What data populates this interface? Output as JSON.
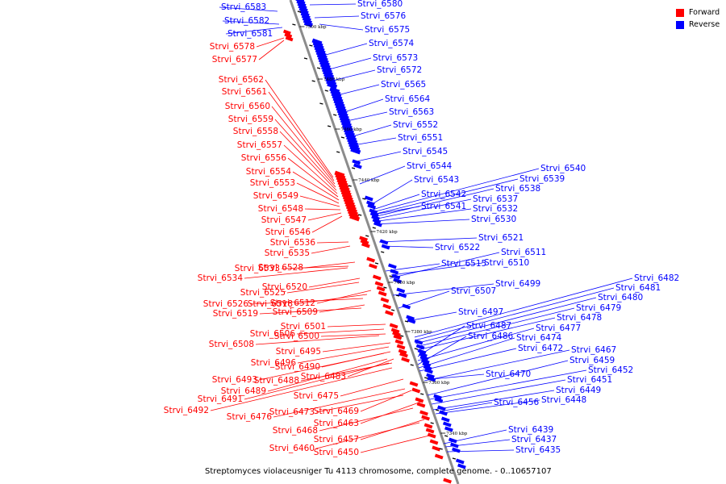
{
  "legend": {
    "forward": {
      "label": "Forward",
      "color": "#ff0000"
    },
    "reverse": {
      "label": "Reverse",
      "color": "#0000ff"
    }
  },
  "caption": "Streptomyces violaceusniger Tu 4113 chromosome, complete genome. - 0..10657107",
  "ticks": [
    "7500 kbp",
    "7480 kbp",
    "7460 kbp",
    "7440 kbp",
    "7420 kbp",
    "7400 kbp",
    "7380 kbp",
    "7360 kbp",
    "7340 kbp"
  ],
  "forward_labels": [
    "Strvi_6578",
    "Strvi_6577",
    "Strvi_6562",
    "Strvi_6561",
    "Strvi_6560",
    "Strvi_6559",
    "Strvi_6558",
    "Strvi_6557",
    "Strvi_6556",
    "Strvi_6554",
    "Strvi_6553",
    "Strvi_6549",
    "Strvi_6548",
    "Strvi_6547",
    "Strvi_6546",
    "Strvi_6536",
    "Strvi_6535",
    "Strvi_6528",
    "Strvi_6533",
    "Strvi_6534",
    "Strvi_6520",
    "Strvi_6525",
    "Strvi_6512",
    "Strvi_6518",
    "Strvi_6526",
    "Strvi_6509",
    "Strvi_6519",
    "Strvi_6501",
    "Strvi_6506",
    "Strvi_6500",
    "Strvi_6508",
    "Strvi_6495",
    "Strvi_6496",
    "Strvi_6490",
    "Strvi_6483",
    "Strvi_6488",
    "Strvi_6493",
    "Strvi_6489",
    "Strvi_6475",
    "Strvi_6491",
    "Strvi_6492",
    "Strvi_6469",
    "Strvi_6473",
    "Strvi_6476",
    "Strvi_6463",
    "Strvi_6468",
    "Strvi_6457",
    "Strvi_6460",
    "Strvi_6450"
  ],
  "reverse_labels": [
    "Strvi_6583",
    "Strvi_6582",
    "Strvi_6581",
    "Strvi_6580",
    "Strvi_6576",
    "Strvi_6575",
    "Strvi_6574",
    "Strvi_6573",
    "Strvi_6572",
    "Strvi_6565",
    "Strvi_6564",
    "Strvi_6563",
    "Strvi_6552",
    "Strvi_6551",
    "Strvi_6545",
    "Strvi_6544",
    "Strvi_6540",
    "Strvi_6539",
    "Strvi_6543",
    "Strvi_6538",
    "Strvi_6542",
    "Strvi_6537",
    "Strvi_6541",
    "Strvi_6532",
    "Strvi_6530",
    "Strvi_6521",
    "Strvi_6522",
    "Strvi_6511",
    "Strvi_6515",
    "Strvi_6510",
    "Strvi_6499",
    "Strvi_6507",
    "Strvi_6482",
    "Strvi_6481",
    "Strvi_6480",
    "Strvi_6479",
    "Strvi_6497",
    "Strvi_6478",
    "Strvi_6487",
    "Strvi_6477",
    "Strvi_6486",
    "Strvi_6474",
    "Strvi_6472",
    "Strvi_6467",
    "Strvi_6470",
    "Strvi_6459",
    "Strvi_6452",
    "Strvi_6451",
    "Strvi_6449",
    "Strvi_6456",
    "Strvi_6448",
    "Strvi_6439",
    "Strvi_6437",
    "Strvi_6435"
  ]
}
